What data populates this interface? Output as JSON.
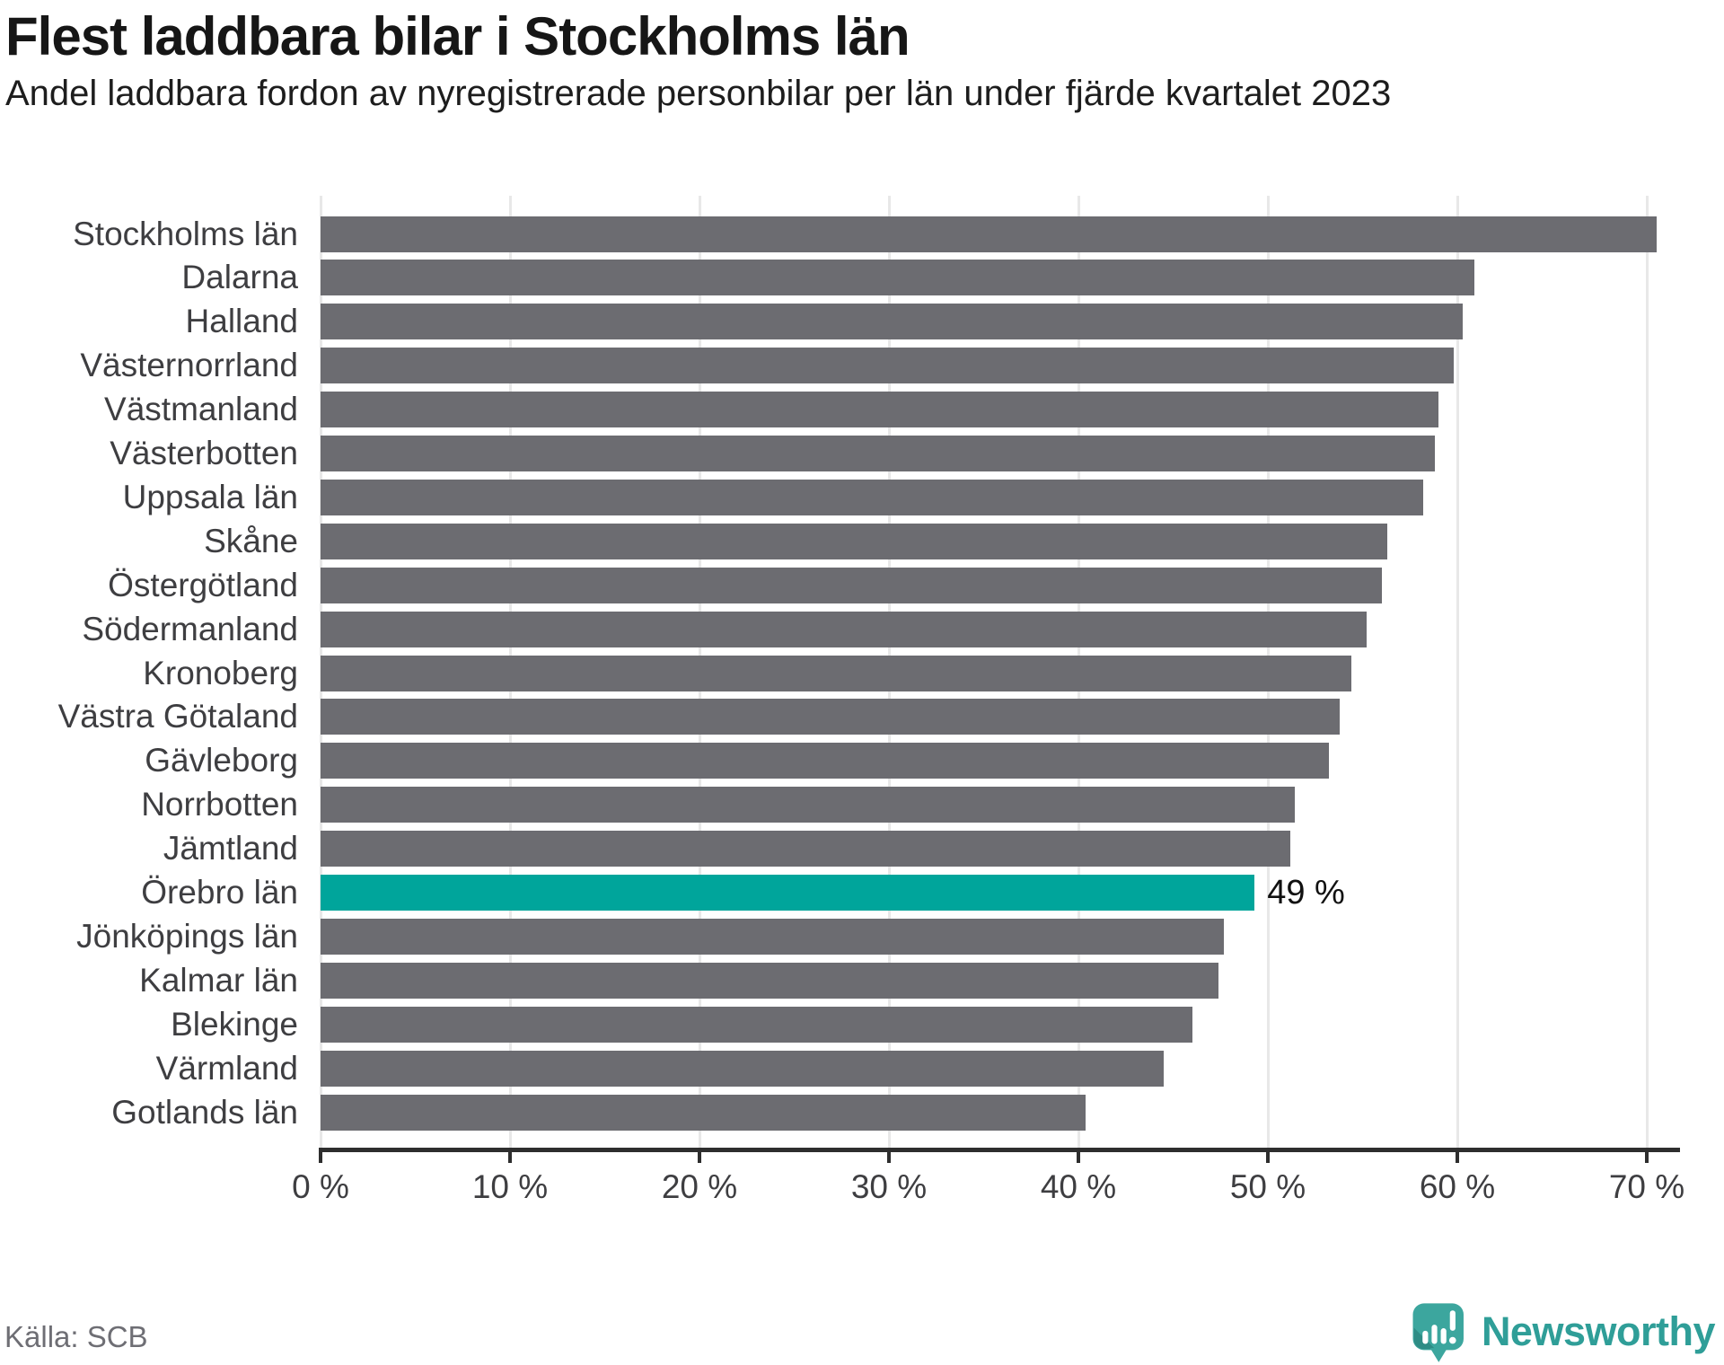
{
  "header": {
    "title": "Flest laddbara bilar i Stockholms län",
    "subtitle": "Andel laddbara fordon av nyregistrerade personbilar per län under fjärde kvartalet 2023"
  },
  "chart_data": {
    "type": "bar",
    "orientation": "horizontal",
    "title": "Flest laddbara bilar i Stockholms län",
    "subtitle": "Andel laddbara fordon av nyregistrerade personbilar per län under fjärde kvartalet 2023",
    "xlabel": "",
    "ylabel": "",
    "xlim": [
      0,
      71.6
    ],
    "grid": "vertical",
    "legend": "none",
    "tick_values": [
      0,
      10,
      20,
      30,
      40,
      50,
      60,
      70
    ],
    "tick_labels": [
      "0 %",
      "10 %",
      "20 %",
      "30 %",
      "40 %",
      "50 %",
      "60 %",
      "70 %"
    ],
    "bar_color": "#6C6C71",
    "highlight_color": "#00A59B",
    "highlight_index": 15,
    "highlight_value_label": "49 %",
    "categories": [
      "Stockholms län",
      "Dalarna",
      "Halland",
      "Västernorrland",
      "Västmanland",
      "Västerbotten",
      "Uppsala län",
      "Skåne",
      "Östergötland",
      "Södermanland",
      "Kronoberg",
      "Västra Götaland",
      "Gävleborg",
      "Norrbotten",
      "Jämtland",
      "Örebro län",
      "Jönköpings län",
      "Kalmar län",
      "Blekinge",
      "Värmland",
      "Gotlands län"
    ],
    "values": [
      70.5,
      60.9,
      60.3,
      59.8,
      59.0,
      58.8,
      58.2,
      56.3,
      56.0,
      55.2,
      54.4,
      53.8,
      53.2,
      51.4,
      51.2,
      49.3,
      47.7,
      47.4,
      46.0,
      44.5,
      40.4
    ]
  },
  "footer": {
    "source": "Källa: SCB",
    "brand_name": "Newsworthy"
  }
}
